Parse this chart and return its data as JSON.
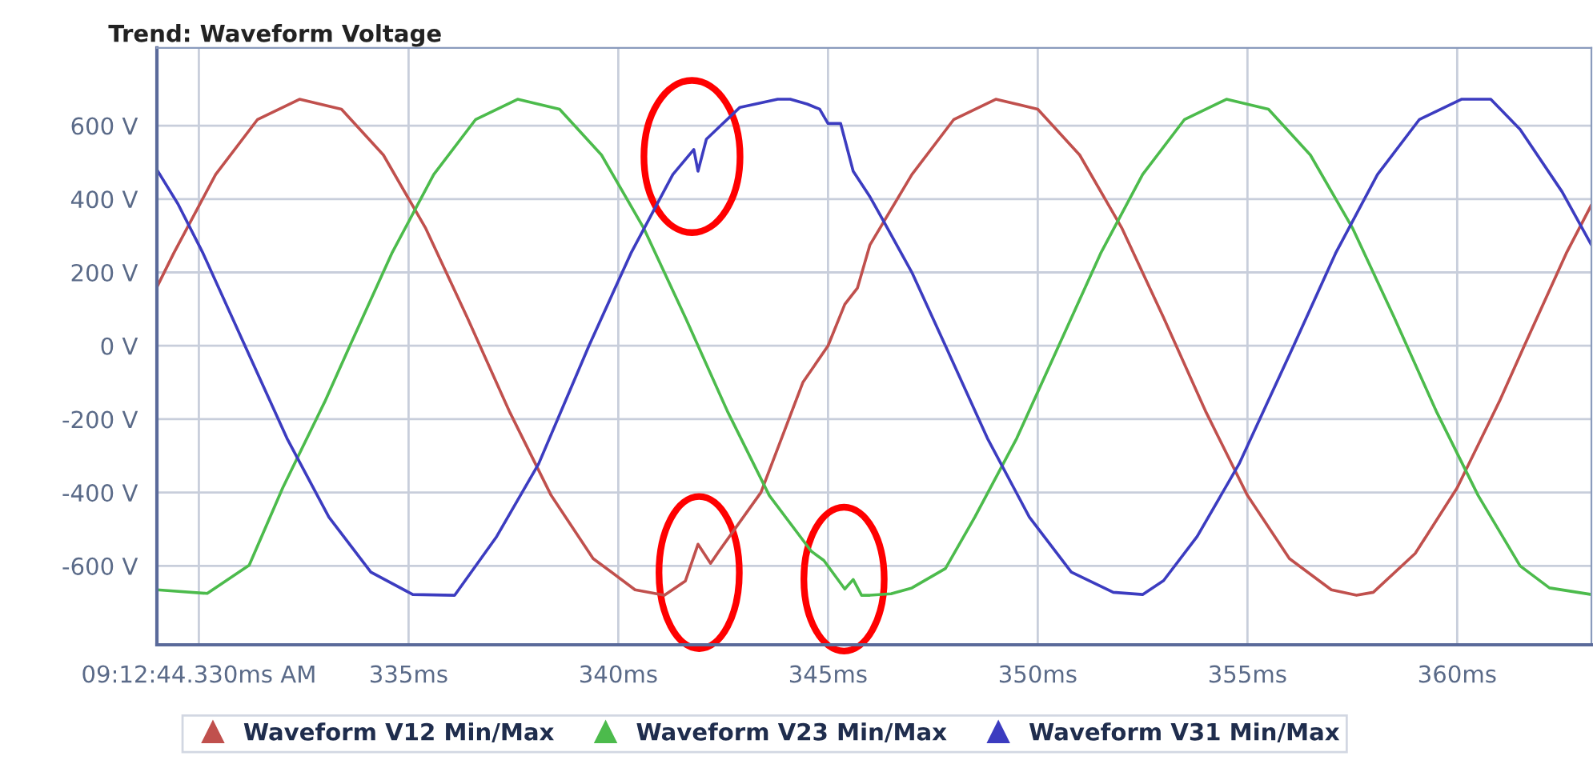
{
  "chart_data": {
    "type": "line",
    "title": "Trend: Waveform Voltage",
    "xlim": [
      329.0,
      363.2
    ],
    "ylim": [
      -815,
      812
    ],
    "xticks": [
      {
        "value": 330,
        "label": "09:12:44.330ms AM"
      },
      {
        "value": 335,
        "label": "335ms"
      },
      {
        "value": 340,
        "label": "340ms"
      },
      {
        "value": 345,
        "label": "345ms"
      },
      {
        "value": 350,
        "label": "350ms"
      },
      {
        "value": 355,
        "label": "355ms"
      },
      {
        "value": 360,
        "label": "360ms"
      }
    ],
    "yticks": [
      {
        "value": -600,
        "label": "-600 V"
      },
      {
        "value": -400,
        "label": "-400 V"
      },
      {
        "value": -200,
        "label": "-200 V"
      },
      {
        "value": 0,
        "label": "0 V"
      },
      {
        "value": 200,
        "label": "200 V"
      },
      {
        "value": 400,
        "label": "400 V"
      },
      {
        "value": 600,
        "label": "600 V"
      }
    ],
    "grid": true,
    "legend": "bottom",
    "line_style": "solid",
    "series": [
      {
        "name": "Waveform V12 Min/Max",
        "color": "#c0504d",
        "x": [
          329.0,
          329.4,
          330.4,
          331.4,
          332.4,
          333.4,
          334.4,
          335.4,
          336.4,
          337.4,
          338.4,
          339.4,
          340.4,
          341.1,
          341.6,
          341.9,
          342.2,
          342.4,
          343.4,
          344.4,
          345.0,
          345.4,
          345.7,
          346.0,
          347.0,
          348.0,
          349.0,
          350.0,
          351.0,
          352.0,
          353.0,
          354.0,
          355.0,
          356.0,
          357.0,
          357.6,
          358.0,
          359.0,
          360.0,
          361.0,
          361.6,
          362.6,
          363.2
        ],
        "values": [
          160,
          252,
          467,
          617,
          672,
          645,
          520,
          322,
          77,
          -178,
          -408,
          -580,
          -665,
          -680,
          -641,
          -541,
          -593,
          -560,
          -400,
          -100,
          0,
          113,
          157,
          275,
          467,
          617,
          672,
          645,
          520,
          322,
          77,
          -178,
          -408,
          -580,
          -665,
          -680,
          -672,
          -566,
          -387,
          -153,
          0,
          252,
          384
        ]
      },
      {
        "name": "Waveform V23 Min/Max",
        "color": "#4cbb4c",
        "x": [
          329.0,
          330.2,
          331.2,
          332.0,
          333.0,
          333.6,
          334.6,
          335.6,
          336.6,
          337.6,
          338.6,
          339.6,
          340.6,
          341.6,
          342.6,
          343.6,
          344.6,
          344.9,
          345.4,
          345.6,
          345.8,
          346.0,
          346.5,
          347.0,
          347.8,
          348.5,
          349.5,
          350.5,
          351.5,
          352.5,
          353.5,
          354.5,
          355.5,
          356.5,
          357.5,
          358.5,
          359.5,
          360.5,
          361.5,
          362.2,
          363.2
        ],
        "values": [
          -665,
          -675,
          -598,
          -387,
          -153,
          0,
          252,
          467,
          617,
          672,
          645,
          520,
          322,
          77,
          -178,
          -408,
          -560,
          -585,
          -663,
          -637,
          -680,
          -680,
          -676,
          -660,
          -607,
          -467,
          -252,
          0,
          252,
          467,
          617,
          672,
          645,
          520,
          322,
          77,
          -178,
          -408,
          -600,
          -660,
          -678
        ]
      },
      {
        "name": "Waveform V31 Min/Max",
        "color": "#3c3cc0",
        "x": [
          329.0,
          329.5,
          330.1,
          331.1,
          332.1,
          333.1,
          334.1,
          335.1,
          336.1,
          337.1,
          338.1,
          339.3,
          340.3,
          341.3,
          341.8,
          341.9,
          342.1,
          342.3,
          342.9,
          343.8,
          344.1,
          344.5,
          344.8,
          345.0,
          345.3,
          345.6,
          346.0,
          346.3,
          347.0,
          347.8,
          348.8,
          349.8,
          350.8,
          351.8,
          352.5,
          353.0,
          353.8,
          354.8,
          356.1,
          357.1,
          358.1,
          359.1,
          360.1,
          360.8,
          361.5,
          362.5,
          363.2
        ],
        "values": [
          480,
          387,
          252,
          0,
          -252,
          -467,
          -617,
          -678,
          -680,
          -520,
          -322,
          0,
          252,
          467,
          535,
          476,
          563,
          585,
          650,
          672,
          672,
          659,
          645,
          606,
          606,
          476,
          406,
          345,
          200,
          0,
          -252,
          -467,
          -617,
          -672,
          -678,
          -640,
          -520,
          -322,
          0,
          252,
          467,
          617,
          672,
          672,
          590,
          420,
          275
        ]
      }
    ]
  }
}
